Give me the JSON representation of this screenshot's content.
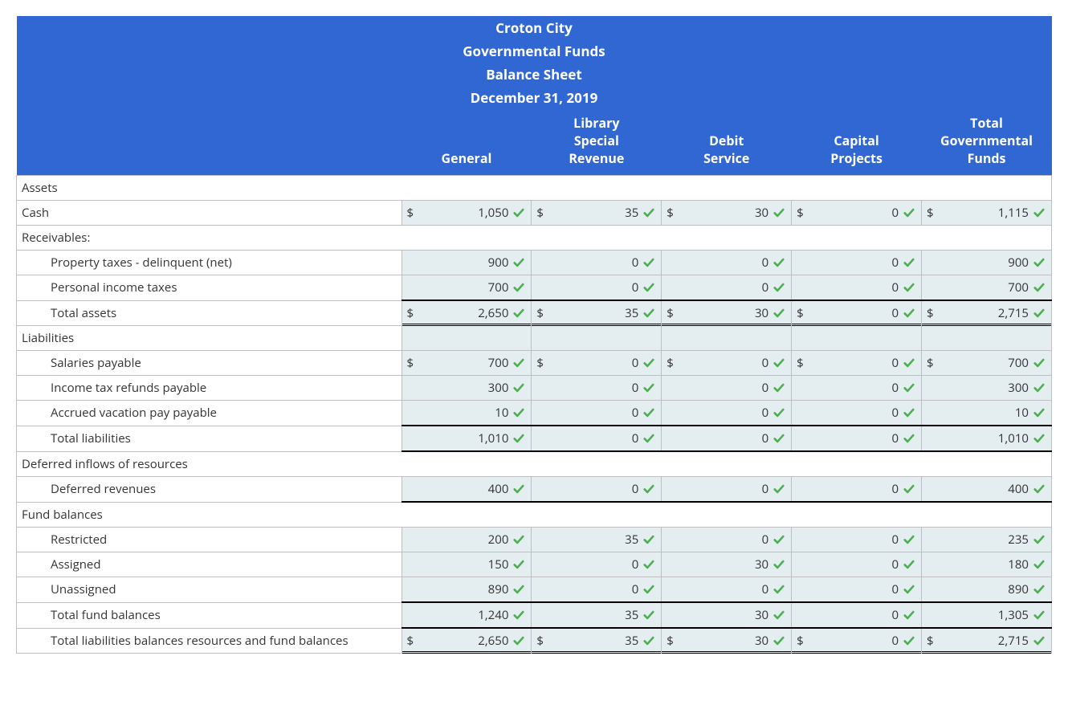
{
  "header": {
    "line1": "Croton City",
    "line2": "Governmental Funds",
    "line3": "Balance Sheet",
    "line4": "December 31, 2019"
  },
  "columns": {
    "c1": "General",
    "c2": "Library Special Revenue",
    "c3": "Debit Service",
    "c4": "Capital Projects",
    "c5": "Total Governmental Funds"
  },
  "check_color": "#4caf50",
  "header_bg": "#3067d3",
  "cell_bg": "#e4edf0",
  "rows": [
    {
      "type": "section",
      "label": "Assets"
    },
    {
      "type": "data",
      "label": "Cash",
      "indent": 0,
      "dollar": true,
      "v": [
        "1,050",
        "35",
        "30",
        "0",
        "1,115"
      ]
    },
    {
      "type": "section",
      "label": "Receivables:"
    },
    {
      "type": "data",
      "label": "Property taxes - delinquent (net)",
      "indent": 1,
      "dollar": false,
      "v": [
        "900",
        "0",
        "0",
        "0",
        "900"
      ]
    },
    {
      "type": "data",
      "label": "Personal income taxes",
      "indent": 1,
      "dollar": false,
      "v": [
        "700",
        "0",
        "0",
        "0",
        "700"
      ]
    },
    {
      "type": "data",
      "label": "Total assets",
      "indent": 1,
      "dollar": true,
      "style": "dbl",
      "v": [
        "2,650",
        "35",
        "30",
        "0",
        "2,715"
      ]
    },
    {
      "type": "section-blank",
      "label": "Liabilities"
    },
    {
      "type": "data",
      "label": "Salaries payable",
      "indent": 1,
      "dollar": true,
      "v": [
        "700",
        "0",
        "0",
        "0",
        "700"
      ]
    },
    {
      "type": "data",
      "label": "Income tax refunds payable",
      "indent": 1,
      "dollar": false,
      "v": [
        "300",
        "0",
        "0",
        "0",
        "300"
      ]
    },
    {
      "type": "data",
      "label": "Accrued vacation pay payable",
      "indent": 1,
      "dollar": false,
      "v": [
        "10",
        "0",
        "0",
        "0",
        "10"
      ]
    },
    {
      "type": "data",
      "label": "Total liabilities",
      "indent": 1,
      "dollar": false,
      "style": "topbot",
      "v": [
        "1,010",
        "0",
        "0",
        "0",
        "1,010"
      ]
    },
    {
      "type": "section",
      "label": "Deferred inflows of resources"
    },
    {
      "type": "data",
      "label": "Deferred revenues",
      "indent": 1,
      "dollar": false,
      "style": "bot",
      "v": [
        "400",
        "0",
        "0",
        "0",
        "400"
      ]
    },
    {
      "type": "section",
      "label": "Fund balances"
    },
    {
      "type": "data",
      "label": "Restricted",
      "indent": 1,
      "dollar": false,
      "v": [
        "200",
        "35",
        "0",
        "0",
        "235"
      ]
    },
    {
      "type": "data",
      "label": "Assigned",
      "indent": 1,
      "dollar": false,
      "v": [
        "150",
        "0",
        "30",
        "0",
        "180"
      ]
    },
    {
      "type": "data",
      "label": "Unassigned",
      "indent": 1,
      "dollar": false,
      "v": [
        "890",
        "0",
        "0",
        "0",
        "890"
      ]
    },
    {
      "type": "data",
      "label": "Total fund balances",
      "indent": 1,
      "dollar": false,
      "style": "top",
      "v": [
        "1,240",
        "35",
        "30",
        "0",
        "1,305"
      ]
    },
    {
      "type": "data",
      "label": "Total liabilities balances resources and fund balances",
      "indent": 1,
      "dollar": true,
      "style": "dbl",
      "v": [
        "2,650",
        "35",
        "30",
        "0",
        "2,715"
      ]
    }
  ]
}
